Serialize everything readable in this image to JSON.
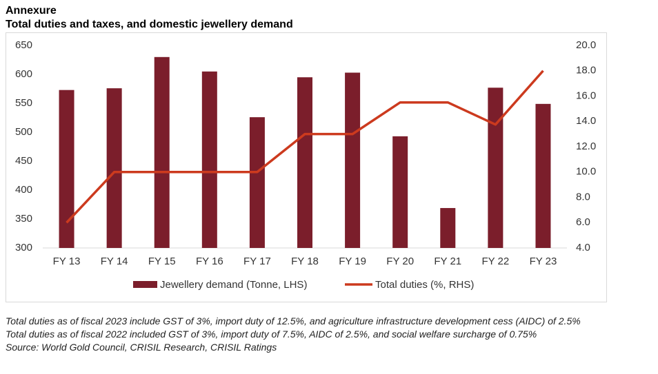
{
  "chart_data": {
    "type": "bar_line",
    "title": "Annexure",
    "subtitle": "Total duties and taxes, and domestic jewellery demand",
    "categories": [
      "FY 13",
      "FY 14",
      "FY 15",
      "FY 16",
      "FY 17",
      "FY 18",
      "FY 19",
      "FY 20",
      "FY 21",
      "FY 22",
      "FY 23"
    ],
    "series": [
      {
        "name": "Jewellery demand (Tonne, LHS)",
        "type": "bar",
        "color": "#7b1e2b",
        "values": [
          573,
          576,
          630,
          605,
          526,
          595,
          603,
          493,
          369,
          577,
          549
        ]
      },
      {
        "name": "Total duties (%, RHS)",
        "type": "line",
        "axis": "y2",
        "color": "#cc3a1e",
        "values": [
          6.0,
          10.0,
          10.0,
          10.0,
          10.0,
          13.0,
          13.0,
          15.5,
          15.5,
          13.75,
          18.0
        ]
      }
    ],
    "ylim": [
      300,
      650
    ],
    "yticks": [
      300,
      350,
      400,
      450,
      500,
      550,
      600,
      650
    ],
    "y2lim": [
      4,
      20
    ],
    "y2ticks": [
      {
        "value": 4,
        "label": "4.0"
      },
      {
        "value": 6,
        "label": "6.0"
      },
      {
        "value": 8,
        "label": "8.0"
      },
      {
        "value": 10,
        "label": "10.0"
      },
      {
        "value": 12,
        "label": "12.0"
      },
      {
        "value": 14,
        "label": "14.0"
      },
      {
        "value": 16,
        "label": "16.0"
      },
      {
        "value": 18,
        "label": "18.0"
      },
      {
        "value": 20,
        "label": "20.0"
      }
    ],
    "grid": false,
    "legend": "bottom",
    "notes": [
      "Total duties as of fiscal 2023 include GST of 3%, import duty of 12.5%, and agriculture infrastructure development cess (AIDC) of 2.5%",
      "Total duties as of fiscal 2022 included GST of 3%, import duty of 7.5%, AIDC of 2.5%, and social welfare surcharge of 0.75%",
      "Source: World Gold Council, CRISIL Research, CRISIL Ratings"
    ]
  }
}
